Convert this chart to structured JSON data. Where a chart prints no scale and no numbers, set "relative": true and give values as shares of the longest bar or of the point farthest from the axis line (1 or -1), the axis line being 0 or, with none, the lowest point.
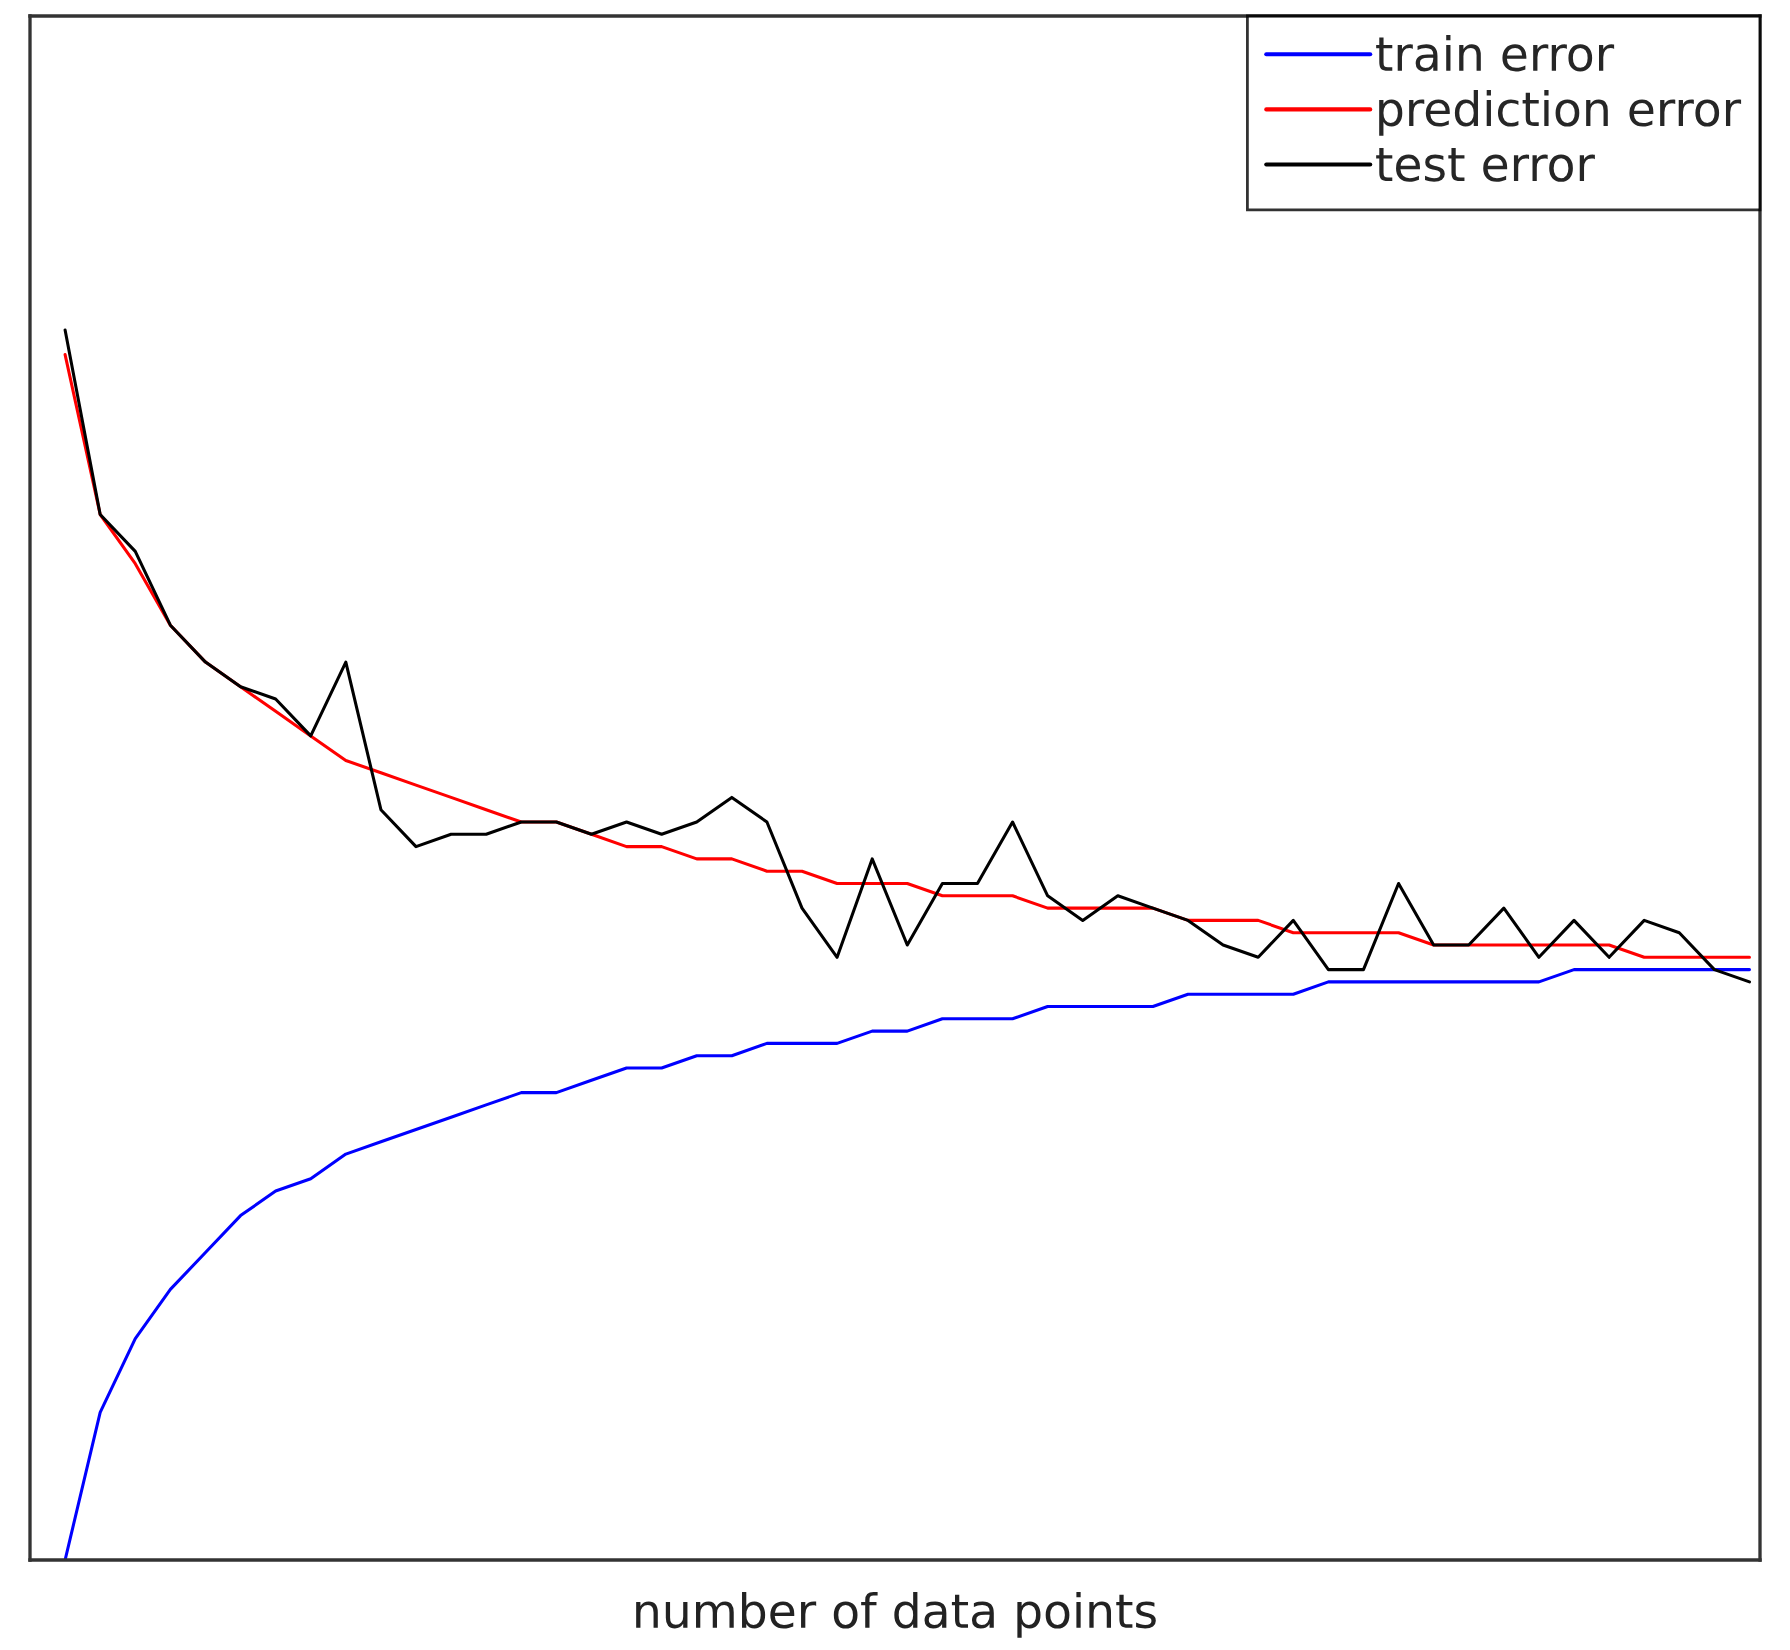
{
  "chart_data": {
    "type": "line",
    "relative": true,
    "xlabel": "number of data points",
    "legend": "top right",
    "grid": false,
    "marker": "none",
    "line_style": "solid",
    "categories": [
      null,
      null,
      null,
      null,
      null,
      null,
      null,
      null,
      null,
      null,
      null,
      null,
      null,
      null,
      null,
      null,
      null,
      null,
      null,
      null,
      null,
      null,
      null,
      null,
      null,
      null,
      null,
      null,
      null,
      null,
      null,
      null,
      null,
      null,
      null,
      null,
      null,
      null,
      null,
      null,
      null,
      null,
      null,
      null,
      null,
      null,
      null,
      null,
      null
    ],
    "series": [
      {
        "name": "train error",
        "color": "#0000ff",
        "values": [
          0,
          0.12,
          0.18,
          0.22,
          0.25,
          0.28,
          0.3,
          0.31,
          0.33,
          0.34,
          0.35,
          0.36,
          0.37,
          0.38,
          0.38,
          0.39,
          0.4,
          0.4,
          0.41,
          0.41,
          0.42,
          0.42,
          0.42,
          0.43,
          0.43,
          0.44,
          0.44,
          0.44,
          0.45,
          0.45,
          0.45,
          0.45,
          0.46,
          0.46,
          0.46,
          0.46,
          0.47,
          0.47,
          0.47,
          0.47,
          0.47,
          0.47,
          0.47,
          0.48,
          0.48,
          0.48,
          0.48,
          0.48,
          0.48
        ]
      },
      {
        "name": "prediction error",
        "color": "#ff0000",
        "values": [
          0.98,
          0.85,
          0.81,
          0.76,
          0.73,
          0.71,
          0.69,
          0.67,
          0.65,
          0.64,
          0.63,
          0.62,
          0.61,
          0.6,
          0.6,
          0.59,
          0.58,
          0.58,
          0.57,
          0.57,
          0.56,
          0.56,
          0.55,
          0.55,
          0.55,
          0.54,
          0.54,
          0.54,
          0.53,
          0.53,
          0.53,
          0.53,
          0.52,
          0.52,
          0.52,
          0.51,
          0.51,
          0.51,
          0.51,
          0.5,
          0.5,
          0.5,
          0.5,
          0.5,
          0.5,
          0.49,
          0.49,
          0.49,
          0.49
        ]
      },
      {
        "name": "test error",
        "color": "#000000",
        "values": [
          1.0,
          0.85,
          0.82,
          0.76,
          0.73,
          0.71,
          0.7,
          0.67,
          0.73,
          0.61,
          0.58,
          0.59,
          0.59,
          0.6,
          0.6,
          0.59,
          0.6,
          0.59,
          0.6,
          0.62,
          0.6,
          0.53,
          0.49,
          0.57,
          0.5,
          0.55,
          0.55,
          0.6,
          0.54,
          0.52,
          0.54,
          0.53,
          0.52,
          0.5,
          0.49,
          0.52,
          0.48,
          0.48,
          0.55,
          0.5,
          0.5,
          0.53,
          0.49,
          0.52,
          0.49,
          0.52,
          0.51,
          0.48,
          0.47
        ]
      }
    ]
  }
}
